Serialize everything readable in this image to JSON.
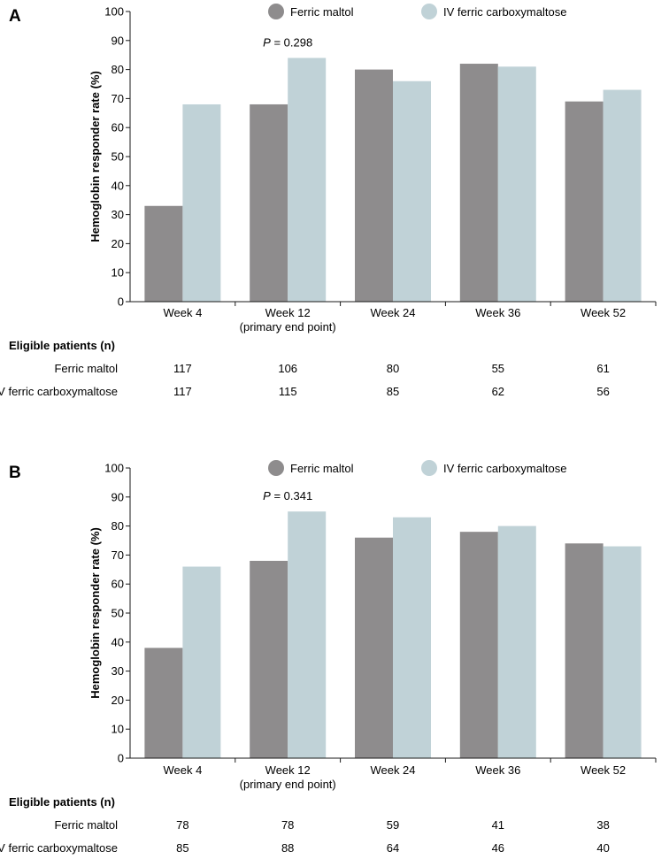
{
  "colors": {
    "ferric_maltol": "#8e8c8d",
    "iv_fcm": "#c0d2d7",
    "axis": "#1a1a1a"
  },
  "chart_data": [
    {
      "type": "bar",
      "panel": "A",
      "categories": [
        "Week 4",
        "Week 12",
        "Week 24",
        "Week 36",
        "Week 52"
      ],
      "category_sublabels": [
        "",
        "(primary end point)",
        "",
        "",
        ""
      ],
      "series": [
        {
          "name": "Ferric maltol",
          "values": [
            33,
            68,
            80,
            82,
            69
          ]
        },
        {
          "name": "IV ferric carboxymaltose",
          "values": [
            68,
            84,
            76,
            81,
            73
          ]
        }
      ],
      "ylabel": "Hemoglobin responder rate (%)",
      "ylim": [
        0,
        100
      ],
      "yticks": [
        0,
        10,
        20,
        30,
        40,
        50,
        60,
        70,
        80,
        90,
        100
      ],
      "annotation": {
        "category_index": 1,
        "italic": "P",
        "text": " = 0.298"
      },
      "table": {
        "title": "Eligible patients (n)",
        "rows": [
          {
            "label": "Ferric maltol",
            "values": [
              "117",
              "106",
              "80",
              "55",
              "61"
            ]
          },
          {
            "label": "IV ferric carboxymaltose",
            "values": [
              "117",
              "115",
              "85",
              "62",
              "56"
            ]
          }
        ]
      }
    },
    {
      "type": "bar",
      "panel": "B",
      "categories": [
        "Week 4",
        "Week 12",
        "Week 24",
        "Week 36",
        "Week 52"
      ],
      "category_sublabels": [
        "",
        "(primary end point)",
        "",
        "",
        ""
      ],
      "series": [
        {
          "name": "Ferric maltol",
          "values": [
            38,
            68,
            76,
            78,
            74
          ]
        },
        {
          "name": "IV ferric carboxymaltose",
          "values": [
            66,
            85,
            83,
            80,
            73
          ]
        }
      ],
      "ylabel": "Hemoglobin responder rate (%)",
      "ylim": [
        0,
        100
      ],
      "yticks": [
        0,
        10,
        20,
        30,
        40,
        50,
        60,
        70,
        80,
        90,
        100
      ],
      "annotation": {
        "category_index": 1,
        "italic": "P",
        "text": " = 0.341"
      },
      "table": {
        "title": "Eligible patients (n)",
        "rows": [
          {
            "label": "Ferric maltol",
            "values": [
              "78",
              "78",
              "59",
              "41",
              "38"
            ]
          },
          {
            "label": "IV ferric carboxymaltose",
            "values": [
              "85",
              "88",
              "64",
              "46",
              "40"
            ]
          }
        ]
      }
    }
  ]
}
